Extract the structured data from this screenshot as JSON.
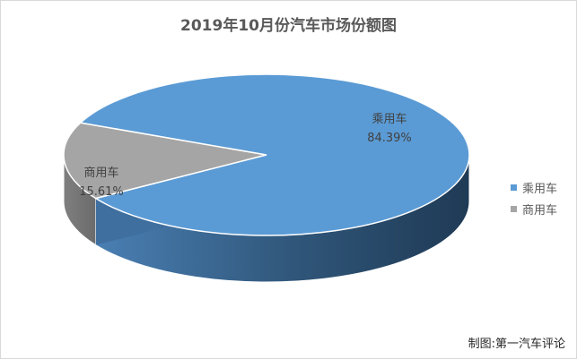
{
  "chart_data": {
    "type": "pie",
    "title": "2019年10月份汽车市场份额图",
    "categories": [
      "乘用车",
      "商用车"
    ],
    "values": [
      84.39,
      15.61
    ],
    "value_labels": [
      "84.39%",
      "15.61%"
    ],
    "colors": [
      "#5b9bd5",
      "#a5a5a5"
    ],
    "legend": "right",
    "style": "3d"
  },
  "caption": "制图:第一汽车评论"
}
